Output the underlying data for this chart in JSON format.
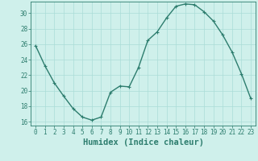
{
  "x": [
    0,
    1,
    2,
    3,
    4,
    5,
    6,
    7,
    8,
    9,
    10,
    11,
    12,
    13,
    14,
    15,
    16,
    17,
    18,
    19,
    20,
    21,
    22,
    23
  ],
  "y": [
    25.8,
    23.2,
    21.0,
    19.3,
    17.7,
    16.6,
    16.2,
    16.6,
    19.8,
    20.6,
    20.5,
    23.0,
    26.5,
    27.6,
    29.4,
    30.9,
    31.2,
    31.1,
    30.2,
    29.0,
    27.2,
    25.0,
    22.2,
    19.0
  ],
  "line_color": "#2d7d6e",
  "marker": "+",
  "marker_size": 3,
  "background_color": "#cff0eb",
  "grid_color": "#aaddd7",
  "xlabel": "Humidex (Indice chaleur)",
  "xlim": [
    -0.5,
    23.5
  ],
  "ylim": [
    15.5,
    31.5
  ],
  "yticks": [
    16,
    18,
    20,
    22,
    24,
    26,
    28,
    30
  ],
  "xticks": [
    0,
    1,
    2,
    3,
    4,
    5,
    6,
    7,
    8,
    9,
    10,
    11,
    12,
    13,
    14,
    15,
    16,
    17,
    18,
    19,
    20,
    21,
    22,
    23
  ],
  "tick_fontsize": 5.5,
  "xlabel_fontsize": 7.5,
  "line_width": 1.0
}
